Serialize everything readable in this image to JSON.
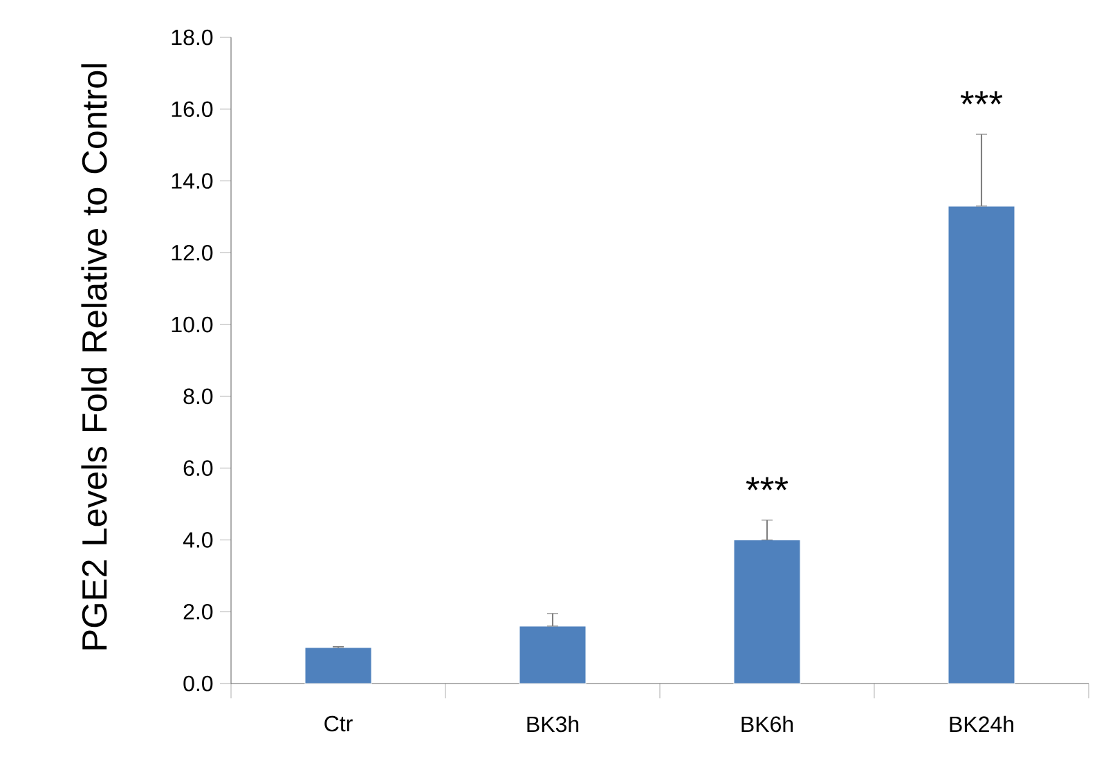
{
  "chart_data": {
    "type": "bar",
    "ylabel": "PGE2 Levels Fold Relative to Control",
    "categories": [
      "Ctr",
      "BK3h",
      "BK6h",
      "BK24h"
    ],
    "values": [
      1.0,
      1.6,
      4.0,
      13.3
    ],
    "errors": [
      [
        1.0,
        1.03
      ],
      [
        1.6,
        1.95
      ],
      [
        4.0,
        4.55
      ],
      [
        13.3,
        15.3
      ]
    ],
    "color": "#4f81bd",
    "ylim": [
      0,
      18
    ],
    "yticks": [
      {
        "value": 0,
        "label": "0.0"
      },
      {
        "value": 2,
        "label": "2.0"
      },
      {
        "value": 4,
        "label": "4.0"
      },
      {
        "value": 6,
        "label": "6.0"
      },
      {
        "value": 8,
        "label": "8.0"
      },
      {
        "value": 10,
        "label": "10.0"
      },
      {
        "value": 12,
        "label": "12.0"
      },
      {
        "value": 14,
        "label": "14.0"
      },
      {
        "value": 16,
        "label": "16.0"
      },
      {
        "value": 18,
        "label": "18.0"
      }
    ],
    "annotations": [
      "***",
      "***"
    ],
    "grid": false
  }
}
